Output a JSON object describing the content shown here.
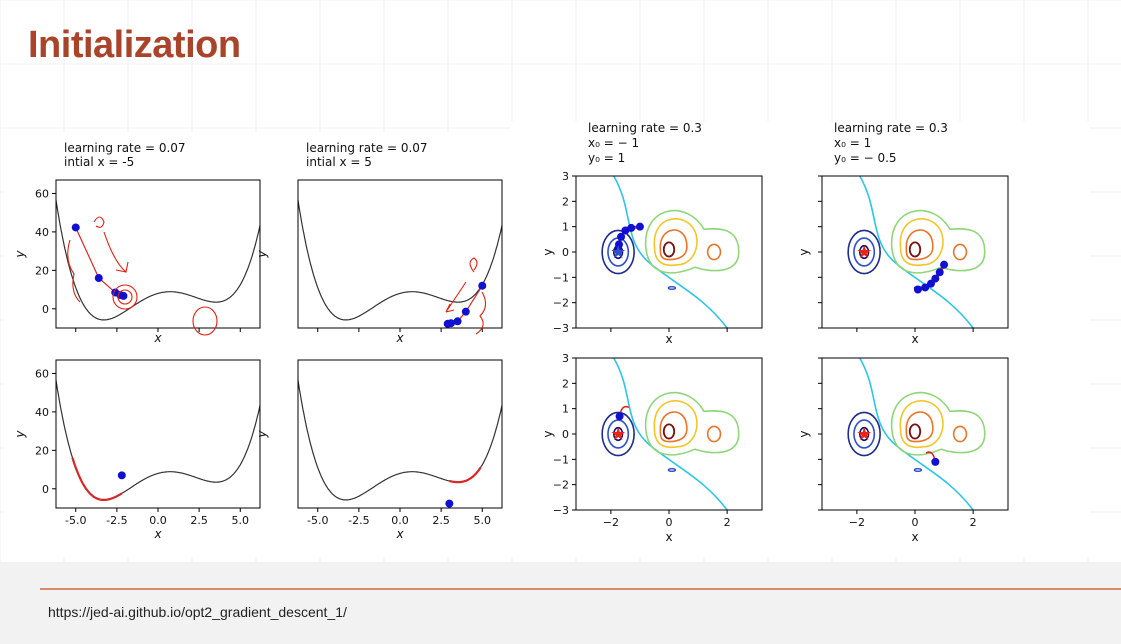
{
  "slide": {
    "title": "Initialization",
    "footer_url": "https://jed-ai.github.io/opt2_gradient_descent_1/"
  },
  "colors": {
    "title": "#a9442a",
    "curve": "#333333",
    "point": "#1010d0",
    "path": "#d62728",
    "star": "#ee2211",
    "annotation": "#e02010"
  },
  "chart_data": [
    {
      "type": "line",
      "panel": "1d-top-left",
      "title": [
        "learning rate = 0.07",
        " intial x = -5"
      ],
      "xlabel": "x",
      "ylabel": "y",
      "xlim": [
        -6.2,
        6.2
      ],
      "ylim": [
        -10,
        67
      ],
      "xticks": [],
      "yticks": [
        0,
        20,
        40,
        60
      ],
      "gd_points": [
        [
          -5.0,
          42.3
        ],
        [
          -3.6,
          16.0
        ],
        [
          -2.6,
          8.5
        ],
        [
          -2.3,
          7.2
        ],
        [
          -2.1,
          6.7
        ]
      ]
    },
    {
      "type": "line",
      "panel": "1d-top-right",
      "title": [
        "learning rate = 0.07",
        "intial x = 5"
      ],
      "xlabel": "x",
      "ylabel": "y",
      "xlim": [
        -6.2,
        6.2
      ],
      "ylim": [
        -10,
        67
      ],
      "xticks": [],
      "yticks": [],
      "gd_points": [
        [
          5.0,
          12.0
        ],
        [
          4.0,
          -1.5
        ],
        [
          3.5,
          -6.5
        ],
        [
          3.1,
          -7.5
        ],
        [
          2.9,
          -7.8
        ]
      ]
    },
    {
      "type": "line",
      "panel": "1d-bottom-left",
      "xlabel": "x",
      "ylabel": "y",
      "xlim": [
        -6.2,
        6.2
      ],
      "ylim": [
        -10,
        67
      ],
      "xticks": [
        "-5.0",
        "-2.5",
        "0.0",
        "2.5",
        "5.0"
      ],
      "yticks": [
        0,
        20,
        40,
        60
      ],
      "gd_points": [
        [
          -2.2,
          7.0
        ]
      ],
      "gd_path_x": [
        -5.2,
        -2.2
      ]
    },
    {
      "type": "line",
      "panel": "1d-bottom-right",
      "xlabel": "x",
      "ylabel": "y",
      "xlim": [
        -6.2,
        6.2
      ],
      "ylim": [
        -10,
        67
      ],
      "xticks": [
        "-5.0",
        "-2.5",
        "0.0",
        "2.5",
        "5.0"
      ],
      "yticks": [],
      "gd_points": [
        [
          3.0,
          -7.7
        ]
      ],
      "gd_path_x": [
        4.9,
        3.0
      ]
    },
    {
      "type": "contour",
      "panel": "2d-top-left",
      "title": [
        "learning rate = 0.3",
        "x₀ = − 1",
        "y₀ = 1"
      ],
      "xlabel": "x",
      "ylabel": "y",
      "xlim": [
        -3.2,
        3.2
      ],
      "ylim": [
        -3,
        3
      ],
      "xticks": [],
      "yticks": [
        3,
        2,
        1,
        0,
        -1,
        -2,
        -3
      ],
      "gd_points": [
        [
          -1.0,
          1.0
        ],
        [
          -1.3,
          0.95
        ],
        [
          -1.5,
          0.85
        ],
        [
          -1.65,
          0.6
        ],
        [
          -1.72,
          0.3
        ],
        [
          -1.74,
          0.05
        ]
      ]
    },
    {
      "type": "contour",
      "panel": "2d-top-right",
      "title": [
        "learning rate = 0.3",
        "x₀ = 1",
        "y₀ = − 0.5"
      ],
      "xlabel": "x",
      "ylabel": "y",
      "xlim": [
        -3.2,
        3.2
      ],
      "ylim": [
        -3,
        3
      ],
      "xticks": [],
      "yticks": [],
      "gd_points": [
        [
          1.0,
          -0.5
        ],
        [
          0.85,
          -0.8
        ],
        [
          0.7,
          -1.05
        ],
        [
          0.55,
          -1.25
        ],
        [
          0.35,
          -1.4
        ],
        [
          0.1,
          -1.48
        ]
      ]
    },
    {
      "type": "contour",
      "panel": "2d-bottom-left",
      "xlabel": "x",
      "ylabel": "y",
      "xlim": [
        -3.2,
        3.2
      ],
      "ylim": [
        -3,
        3
      ],
      "xticks": [
        "−2",
        "0",
        "2"
      ],
      "yticks": [
        3,
        2,
        1,
        0,
        -1,
        -2,
        -3
      ],
      "gd_points": [
        [
          -1.7,
          0.7
        ]
      ],
      "star": [
        -1.75,
        0.0
      ]
    },
    {
      "type": "contour",
      "panel": "2d-bottom-right",
      "xlabel": "x",
      "ylabel": "y",
      "xlim": [
        -3.2,
        3.2
      ],
      "ylim": [
        -3,
        3
      ],
      "xticks": [
        "−2",
        "0",
        "2"
      ],
      "yticks": [],
      "gd_points": [
        [
          0.7,
          -1.1
        ]
      ],
      "star": [
        -1.75,
        0.0
      ]
    }
  ]
}
